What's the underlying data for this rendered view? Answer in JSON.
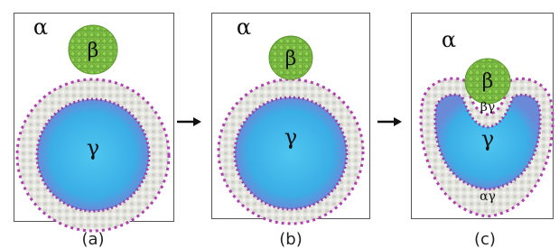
{
  "panels": [
    {
      "labels": {
        "outer": "α",
        "particle": "β",
        "inner": "γ"
      },
      "caption": "(a)"
    },
    {
      "labels": {
        "outer": "α",
        "particle": "β",
        "inner": "γ"
      },
      "caption": "(b)"
    },
    {
      "labels": {
        "outer": "α",
        "particle": "β",
        "inner": "γ",
        "particle_inner": "βγ",
        "outer_inner": "αγ"
      },
      "caption": "(c)"
    }
  ]
}
